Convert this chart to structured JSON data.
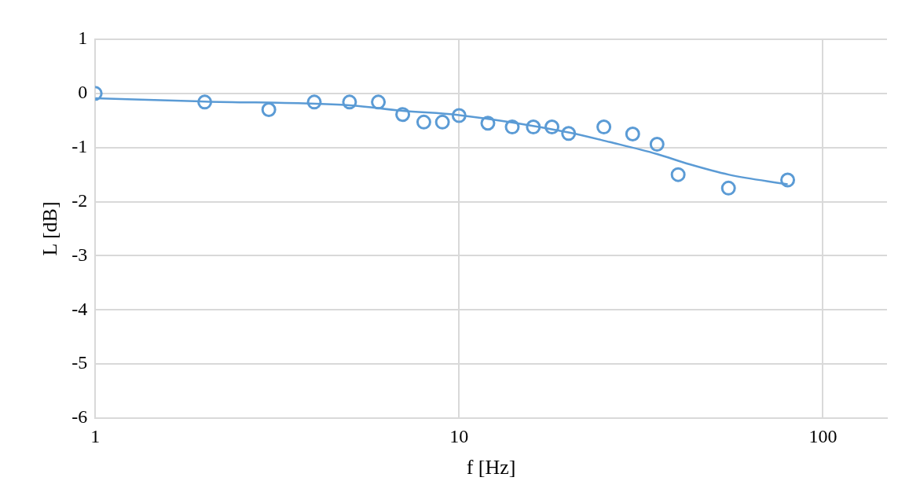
{
  "chart_data": {
    "type": "scatter",
    "xlabel": "f [Hz]",
    "ylabel": "L [dB]",
    "log": "x",
    "xlim": [
      1,
      150
    ],
    "xticks": [
      1,
      10,
      100
    ],
    "ylim": [
      -6,
      1
    ],
    "yticks": [
      -6,
      -5,
      -4,
      -3,
      -2,
      -1,
      0,
      1
    ],
    "grid": true,
    "legend": false,
    "series": [
      {
        "type": "scatter",
        "marker": "circle",
        "color": "#5b9bd5",
        "x": [
          1,
          2,
          3,
          4,
          5,
          6,
          7,
          8,
          9,
          10,
          12,
          14,
          16,
          18,
          20,
          25,
          30,
          35,
          40,
          55,
          80
        ],
        "values": [
          0,
          -0.16,
          -0.3,
          -0.16,
          -0.16,
          -0.16,
          -0.39,
          -0.53,
          -0.53,
          -0.41,
          -0.55,
          -0.62,
          -0.62,
          -0.62,
          -0.74,
          -0.62,
          -0.75,
          -0.94,
          -1.5,
          -1.75,
          -1.6
        ]
      },
      {
        "type": "line",
        "marker": "none",
        "line_style": "solid",
        "color": "#5b9bd5",
        "x": [
          1,
          2,
          5,
          7,
          10,
          20,
          26,
          35,
          43,
          55,
          80
        ],
        "values": [
          -0.09,
          -0.15,
          -0.22,
          -0.32,
          -0.4,
          -0.72,
          -0.9,
          -1.12,
          -1.31,
          -1.5,
          -1.68
        ]
      }
    ]
  }
}
